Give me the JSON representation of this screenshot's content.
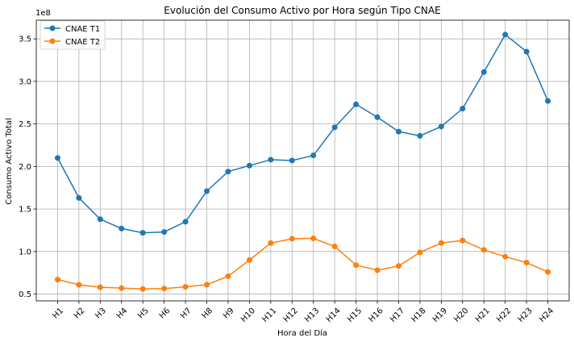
{
  "chart_data": {
    "type": "line",
    "title": "Evolución del Consumo Activo por Hora según Tipo CNAE",
    "xlabel": "Hora del Día",
    "ylabel": "Consumo Activo Total",
    "y_offset_label": "1e8",
    "categories": [
      "H1",
      "H2",
      "H3",
      "H4",
      "H5",
      "H6",
      "H7",
      "H8",
      "H9",
      "H10",
      "H11",
      "H12",
      "H13",
      "H14",
      "H15",
      "H16",
      "H17",
      "H18",
      "H19",
      "H20",
      "H21",
      "H22",
      "H23",
      "H24"
    ],
    "ylim": [
      0.42,
      3.72
    ],
    "yticks": [
      0.5,
      1.0,
      1.5,
      2.0,
      2.5,
      3.0,
      3.5
    ],
    "ytick_labels": [
      "0.5",
      "1.0",
      "1.5",
      "2.0",
      "2.5",
      "3.0",
      "3.5"
    ],
    "grid": true,
    "legend_position": "top-left",
    "series": [
      {
        "name": "CNAE T1",
        "color": "#1f77b4",
        "values": [
          2.1,
          1.63,
          1.38,
          1.27,
          1.22,
          1.23,
          1.35,
          1.71,
          1.94,
          2.01,
          2.08,
          2.07,
          2.13,
          2.46,
          2.73,
          2.58,
          2.41,
          2.36,
          2.47,
          2.68,
          3.11,
          3.55,
          3.35,
          2.77
        ]
      },
      {
        "name": "CNAE T2",
        "color": "#ff7f0e",
        "values": [
          0.67,
          0.61,
          0.58,
          0.57,
          0.56,
          0.565,
          0.585,
          0.61,
          0.71,
          0.9,
          1.1,
          1.15,
          1.155,
          1.06,
          0.84,
          0.78,
          0.83,
          0.99,
          1.1,
          1.13,
          1.02,
          0.94,
          0.87,
          0.76
        ]
      }
    ]
  }
}
